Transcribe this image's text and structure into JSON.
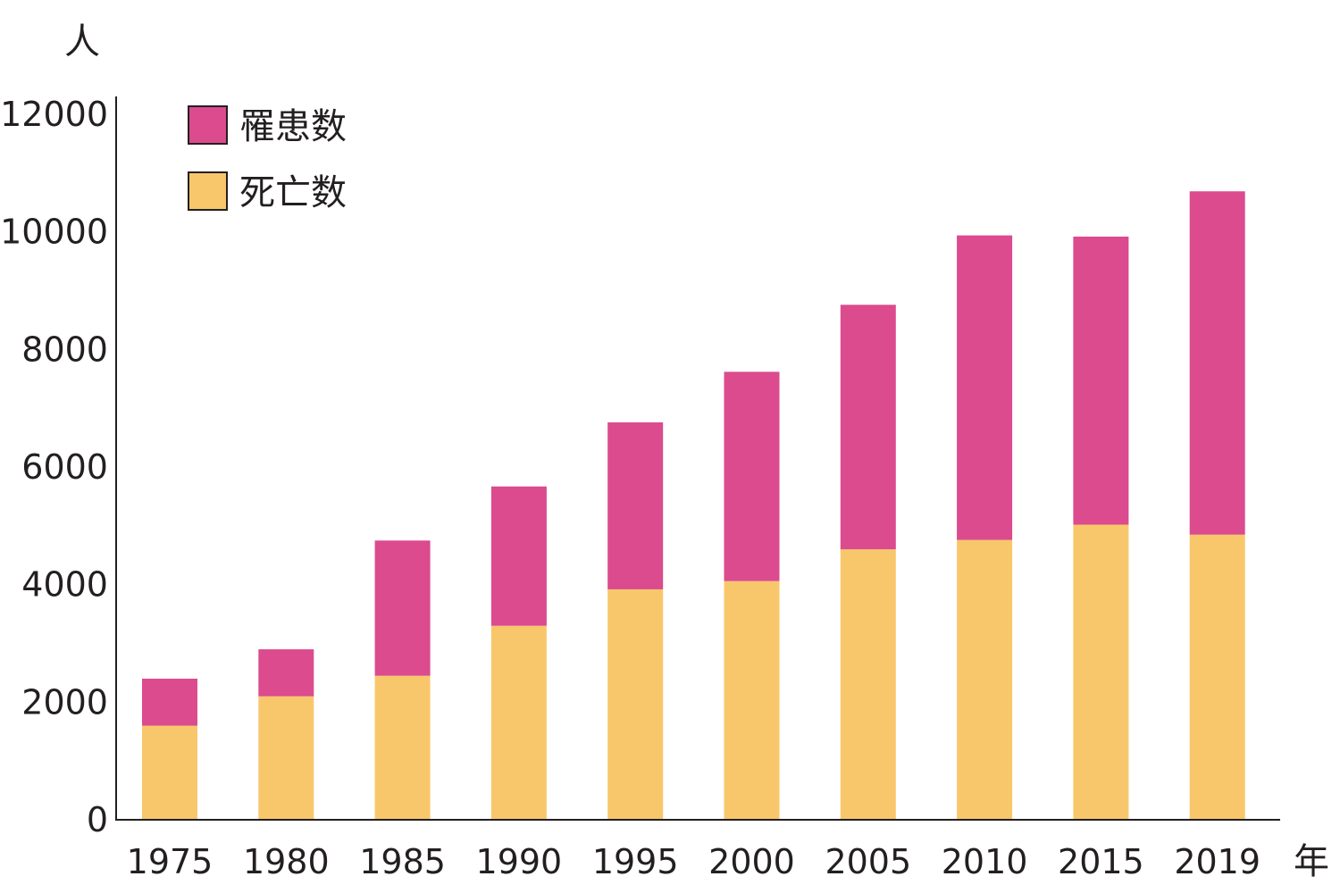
{
  "chart_data": {
    "type": "bar",
    "stacked": true,
    "ylabel": "人",
    "xlabel": "年",
    "ylim": [
      0,
      12000
    ],
    "yticks": [
      0,
      2000,
      4000,
      6000,
      8000,
      10000,
      12000
    ],
    "categories": [
      "1975",
      "1980",
      "1985",
      "1990",
      "1995",
      "2000",
      "2005",
      "2010",
      "2015",
      "2019"
    ],
    "series": [
      {
        "name": "死亡数",
        "color": "#f9c76b",
        "values": [
          1600,
          2100,
          2450,
          3300,
          3920,
          4060,
          4600,
          4760,
          5020,
          4850
        ]
      },
      {
        "name": "罹患数",
        "color": "#db4b8e",
        "values": [
          800,
          800,
          2300,
          2370,
          2840,
          3560,
          4160,
          5180,
          4900,
          5840
        ]
      }
    ],
    "legend": {
      "position": "top-left",
      "order": [
        "罹患数",
        "死亡数"
      ]
    },
    "grid": false
  }
}
